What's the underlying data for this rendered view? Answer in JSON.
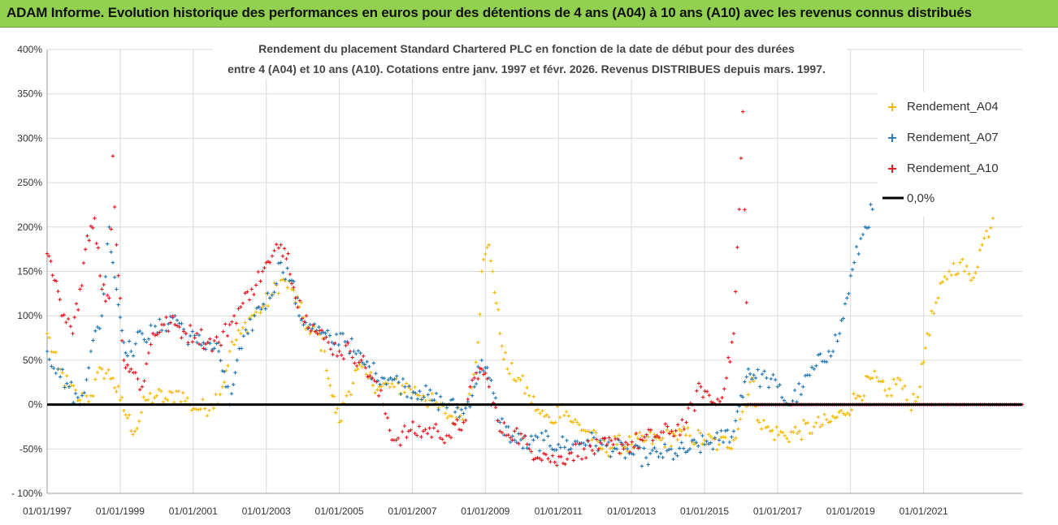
{
  "header": {
    "title": "ADAM Informe. Evolution historique des performances en euros pour des détentions de 4 ans (A04) à 10 ans (A10) avec les revenus connus distribués"
  },
  "colors": {
    "banner": "#92d050",
    "a04": "#f5b800",
    "a07": "#1f77b4",
    "a10": "#e8141c",
    "zero": "#000000",
    "grid": "#d9d9d9"
  },
  "chart_data": {
    "type": "scatter",
    "title_line1": "Rendement du placement Standard Chartered PLC en fonction de la date de début pour des durées",
    "title_line2": "entre 4 (A04) et 10 ans (A10). Cotations entre janv. 1997 et févr. 2026. Revenus DISTRIBUES depuis mars. 1997.",
    "xlabel": "",
    "ylabel": "",
    "x_tick_labels": [
      "01/01/1997",
      "01/01/1999",
      "01/01/2001",
      "01/01/2003",
      "01/01/2005",
      "01/01/2007",
      "01/01/2009",
      "01/01/2011",
      "01/01/2013",
      "01/01/2015",
      "01/01/2017",
      "01/01/2019",
      "01/01/2021"
    ],
    "y_tick_labels": [
      "400%",
      "350%",
      "300%",
      "250%",
      "200%",
      "150%",
      "100%",
      "50%",
      "0%",
      "-50%",
      "- 100%"
    ],
    "xlim": [
      1997.0,
      2023.7
    ],
    "ylim": [
      -100,
      400
    ],
    "legend_position": "right",
    "legend": [
      "Rendement_A04",
      "Rendement_A07",
      "Rendement_A10",
      "0,0%"
    ],
    "series": [
      {
        "name": "Rendement_A04",
        "points": [
          [
            1997.0,
            80
          ],
          [
            1997.3,
            40
          ],
          [
            1997.6,
            20
          ],
          [
            1997.9,
            5
          ],
          [
            1998.2,
            10
          ],
          [
            1998.5,
            40
          ],
          [
            1998.8,
            30
          ],
          [
            1999.0,
            5
          ],
          [
            1999.2,
            -15
          ],
          [
            1999.4,
            -30
          ],
          [
            1999.7,
            5
          ],
          [
            2000.0,
            10
          ],
          [
            2000.3,
            5
          ],
          [
            2000.6,
            15
          ],
          [
            2000.9,
            0
          ],
          [
            2001.2,
            -5
          ],
          [
            2001.5,
            0
          ],
          [
            2001.8,
            20
          ],
          [
            2002.0,
            60
          ],
          [
            2002.3,
            80
          ],
          [
            2002.6,
            100
          ],
          [
            2002.9,
            110
          ],
          [
            2003.1,
            120
          ],
          [
            2003.4,
            140
          ],
          [
            2003.7,
            130
          ],
          [
            2003.9,
            110
          ],
          [
            2004.2,
            80
          ],
          [
            2004.4,
            80
          ],
          [
            2004.6,
            60
          ],
          [
            2004.8,
            10
          ],
          [
            2005.0,
            -20
          ],
          [
            2005.2,
            10
          ],
          [
            2005.5,
            40
          ],
          [
            2005.8,
            30
          ],
          [
            2006.1,
            20
          ],
          [
            2006.5,
            20
          ],
          [
            2006.9,
            20
          ],
          [
            2007.3,
            10
          ],
          [
            2007.6,
            0
          ],
          [
            2007.9,
            -10
          ],
          [
            2008.2,
            -15
          ],
          [
            2008.5,
            0
          ],
          [
            2008.8,
            70
          ],
          [
            2008.9,
            150
          ],
          [
            2009.1,
            180
          ],
          [
            2009.2,
            150
          ],
          [
            2009.4,
            80
          ],
          [
            2009.6,
            40
          ],
          [
            2009.9,
            30
          ],
          [
            2010.2,
            10
          ],
          [
            2010.5,
            -10
          ],
          [
            2010.8,
            -20
          ],
          [
            2011.1,
            0
          ],
          [
            2011.4,
            -20
          ],
          [
            2011.8,
            -30
          ],
          [
            2012.2,
            -50
          ],
          [
            2012.6,
            -45
          ],
          [
            2013.0,
            -45
          ],
          [
            2013.4,
            -40
          ],
          [
            2013.8,
            -40
          ],
          [
            2014.2,
            -35
          ],
          [
            2014.6,
            -35
          ],
          [
            2015.0,
            -40
          ],
          [
            2015.4,
            -45
          ],
          [
            2015.8,
            -40
          ],
          [
            2016.1,
            0
          ],
          [
            2016.3,
            30
          ],
          [
            2016.5,
            -20
          ],
          [
            2016.8,
            -30
          ],
          [
            2017.2,
            -35
          ],
          [
            2017.6,
            -30
          ],
          [
            2018.0,
            -25
          ],
          [
            2018.4,
            -20
          ],
          [
            2018.8,
            -10
          ],
          [
            2019.2,
            10
          ],
          [
            2019.6,
            30
          ],
          [
            2020.0,
            10
          ],
          [
            2020.3,
            30
          ],
          [
            2020.6,
            0
          ],
          [
            2020.9,
            20
          ],
          [
            2021.1,
            80
          ],
          [
            2021.4,
            120
          ],
          [
            2021.7,
            150
          ],
          [
            2022.0,
            160
          ],
          [
            2022.3,
            140
          ],
          [
            2022.6,
            180
          ],
          [
            2022.9,
            210
          ]
        ]
      },
      {
        "name": "Rendement_A07",
        "points": [
          [
            1997.0,
            60
          ],
          [
            1997.3,
            40
          ],
          [
            1997.6,
            20
          ],
          [
            1997.9,
            0
          ],
          [
            1998.2,
            60
          ],
          [
            1998.5,
            100
          ],
          [
            1998.7,
            200
          ],
          [
            1998.9,
            130
          ],
          [
            1999.1,
            70
          ],
          [
            1999.3,
            60
          ],
          [
            1999.6,
            80
          ],
          [
            1999.9,
            80
          ],
          [
            2000.2,
            90
          ],
          [
            2000.5,
            100
          ],
          [
            2000.8,
            80
          ],
          [
            2001.1,
            70
          ],
          [
            2001.4,
            70
          ],
          [
            2001.7,
            60
          ],
          [
            2001.9,
            20
          ],
          [
            2002.0,
            0
          ],
          [
            2002.2,
            50
          ],
          [
            2002.5,
            80
          ],
          [
            2002.8,
            110
          ],
          [
            2003.1,
            120
          ],
          [
            2003.4,
            160
          ],
          [
            2003.7,
            140
          ],
          [
            2003.9,
            100
          ],
          [
            2004.2,
            90
          ],
          [
            2004.5,
            80
          ],
          [
            2004.8,
            70
          ],
          [
            2005.1,
            80
          ],
          [
            2005.4,
            60
          ],
          [
            2005.7,
            45
          ],
          [
            2006.0,
            35
          ],
          [
            2006.4,
            30
          ],
          [
            2006.8,
            20
          ],
          [
            2007.2,
            15
          ],
          [
            2007.6,
            5
          ],
          [
            2008.0,
            0
          ],
          [
            2008.4,
            -10
          ],
          [
            2008.7,
            20
          ],
          [
            2008.9,
            50
          ],
          [
            2009.1,
            30
          ],
          [
            2009.4,
            -20
          ],
          [
            2009.8,
            -40
          ],
          [
            2010.2,
            -45
          ],
          [
            2010.6,
            -40
          ],
          [
            2011.0,
            -45
          ],
          [
            2011.4,
            -45
          ],
          [
            2011.8,
            -40
          ],
          [
            2012.2,
            -45
          ],
          [
            2012.6,
            -50
          ],
          [
            2013.0,
            -55
          ],
          [
            2013.4,
            -60
          ],
          [
            2013.8,
            -55
          ],
          [
            2014.2,
            -55
          ],
          [
            2014.6,
            -50
          ],
          [
            2015.0,
            -45
          ],
          [
            2015.4,
            -40
          ],
          [
            2015.8,
            -30
          ],
          [
            2016.0,
            10
          ],
          [
            2016.2,
            40
          ],
          [
            2016.4,
            30
          ],
          [
            2016.7,
            30
          ],
          [
            2017.0,
            20
          ],
          [
            2017.3,
            0
          ],
          [
            2017.7,
            20
          ],
          [
            2018.0,
            40
          ],
          [
            2018.4,
            60
          ],
          [
            2018.7,
            80
          ],
          [
            2018.9,
            120
          ],
          [
            2019.1,
            160
          ],
          [
            2019.4,
            200
          ],
          [
            2019.6,
            220
          ]
        ]
      },
      {
        "name": "Rendement_A10",
        "points": [
          [
            1997.0,
            170
          ],
          [
            1997.2,
            140
          ],
          [
            1997.4,
            100
          ],
          [
            1997.7,
            80
          ],
          [
            1997.9,
            130
          ],
          [
            1998.1,
            190
          ],
          [
            1998.3,
            210
          ],
          [
            1998.5,
            130
          ],
          [
            1998.7,
            120
          ],
          [
            1998.8,
            280
          ],
          [
            1998.9,
            180
          ],
          [
            1999.1,
            50
          ],
          [
            1999.3,
            40
          ],
          [
            1999.6,
            20
          ],
          [
            1999.9,
            80
          ],
          [
            2000.2,
            90
          ],
          [
            2000.5,
            90
          ],
          [
            2000.8,
            80
          ],
          [
            2001.1,
            80
          ],
          [
            2001.4,
            70
          ],
          [
            2001.7,
            70
          ],
          [
            2002.0,
            90
          ],
          [
            2002.3,
            110
          ],
          [
            2002.6,
            130
          ],
          [
            2002.9,
            150
          ],
          [
            2003.1,
            160
          ],
          [
            2003.4,
            180
          ],
          [
            2003.6,
            170
          ],
          [
            2003.8,
            120
          ],
          [
            2004.1,
            100
          ],
          [
            2004.4,
            80
          ],
          [
            2004.7,
            70
          ],
          [
            2005.0,
            60
          ],
          [
            2005.3,
            60
          ],
          [
            2005.6,
            50
          ],
          [
            2005.9,
            30
          ],
          [
            2006.2,
            0
          ],
          [
            2006.5,
            -40
          ],
          [
            2006.9,
            -30
          ],
          [
            2007.3,
            -30
          ],
          [
            2007.7,
            -30
          ],
          [
            2008.0,
            -35
          ],
          [
            2008.4,
            -20
          ],
          [
            2008.7,
            30
          ],
          [
            2008.9,
            40
          ],
          [
            2009.1,
            20
          ],
          [
            2009.4,
            -30
          ],
          [
            2009.8,
            -30
          ],
          [
            2010.2,
            -50
          ],
          [
            2010.6,
            -55
          ],
          [
            2010.9,
            -65
          ],
          [
            2011.3,
            -55
          ],
          [
            2011.7,
            -50
          ],
          [
            2012.1,
            -50
          ],
          [
            2012.5,
            -45
          ],
          [
            2012.9,
            -45
          ],
          [
            2013.3,
            -40
          ],
          [
            2013.7,
            -35
          ],
          [
            2014.1,
            -30
          ],
          [
            2014.5,
            -20
          ],
          [
            2014.9,
            20
          ],
          [
            2015.3,
            0
          ],
          [
            2015.6,
            30
          ],
          [
            2015.8,
            80
          ],
          [
            2015.95,
            220
          ],
          [
            2016.05,
            330
          ],
          [
            2016.2,
            0
          ],
          [
            2016.6,
            0
          ],
          [
            2017.0,
            0
          ],
          [
            2018.0,
            0
          ],
          [
            2019.0,
            0
          ],
          [
            2020.0,
            0
          ],
          [
            2021.0,
            0
          ],
          [
            2022.0,
            0
          ],
          [
            2023.0,
            0
          ],
          [
            2023.7,
            0
          ]
        ]
      }
    ]
  }
}
